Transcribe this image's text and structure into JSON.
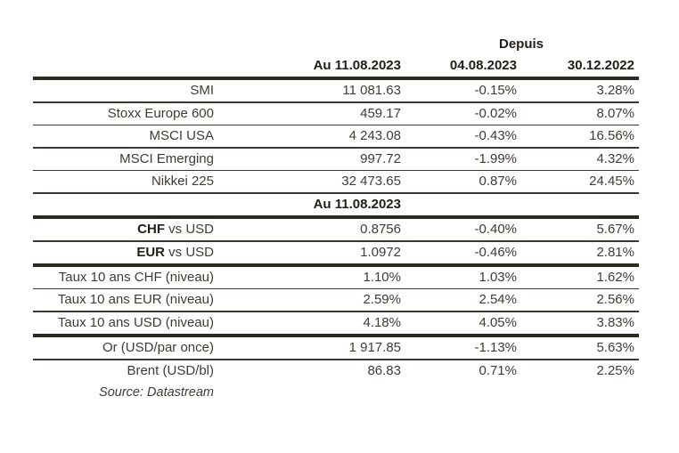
{
  "colors": {
    "ink": "#403c35",
    "strong": "#232019",
    "rule_thin": "#3c3831",
    "rule_thick": "#2c2822",
    "background": "#ffffff"
  },
  "header": {
    "depuis_label": "Depuis",
    "columns": [
      {
        "label": "Au 11.08.2023"
      },
      {
        "label": "04.08.2023"
      },
      {
        "label": "30.12.2022"
      }
    ]
  },
  "table": {
    "rows": [
      {
        "label": "SMI",
        "value": "11 081.63",
        "since_0408": "-0.15%",
        "since_3012": "3.28%",
        "rule_after": "thin"
      },
      {
        "label": "Stoxx Europe 600",
        "value": "459.17",
        "since_0408": "-0.02%",
        "since_3012": "8.07%",
        "rule_after": "thin"
      },
      {
        "label": "MSCI USA",
        "value": "4 243.08",
        "since_0408": "-0.43%",
        "since_3012": "16.56%",
        "rule_after": "thin"
      },
      {
        "label": "MSCI Emerging",
        "value": "997.72",
        "since_0408": "-1.99%",
        "since_3012": "4.32%",
        "rule_after": "thin"
      },
      {
        "label": "Nikkei 225",
        "value": "32 473.65",
        "since_0408": "0.87%",
        "since_3012": "24.45%",
        "rule_after": "thin"
      },
      {
        "type": "subheader",
        "label": "Au 11.08.2023",
        "rule_after": "thick"
      },
      {
        "label_strong": "CHF",
        "label": " vs USD",
        "value": "0.8756",
        "since_0408": "-0.40%",
        "since_3012": "5.67%",
        "rule_after": "thin"
      },
      {
        "label_strong": "EUR",
        "label": " vs USD",
        "value": "1.0972",
        "since_0408": "-0.46%",
        "since_3012": "2.81%",
        "rule_after": "thick"
      },
      {
        "label": "Taux 10 ans CHF (niveau)",
        "value": "1.10%",
        "since_0408": "1.03%",
        "since_3012": "1.62%",
        "rule_after": "thin"
      },
      {
        "label": "Taux 10 ans EUR (niveau)",
        "value": "2.59%",
        "since_0408": "2.54%",
        "since_3012": "2.56%",
        "rule_after": "thin"
      },
      {
        "label": "Taux 10 ans USD (niveau)",
        "value": "4.18%",
        "since_0408": "4.05%",
        "since_3012": "3.83%",
        "rule_after": "thick"
      },
      {
        "label": "Or (USD/par once)",
        "value": "1 917.85",
        "since_0408": "-1.13%",
        "since_3012": "5.63%",
        "rule_after": "thin"
      },
      {
        "label": "Brent (USD/bl)",
        "value": "86.83",
        "since_0408": "0.71%",
        "since_3012": "2.25%",
        "rule_after": null
      }
    ]
  },
  "footer": {
    "source": "Source: Datastream"
  },
  "chart_data": {
    "type": "table",
    "title": "",
    "columns": [
      "",
      "Au 11.08.2023",
      "Depuis 04.08.2023",
      "Depuis 30.12.2022"
    ],
    "rows": [
      [
        "SMI",
        "11 081.63",
        "-0.15%",
        "3.28%"
      ],
      [
        "Stoxx Europe 600",
        "459.17",
        "-0.02%",
        "8.07%"
      ],
      [
        "MSCI USA",
        "4 243.08",
        "-0.43%",
        "16.56%"
      ],
      [
        "MSCI Emerging",
        "997.72",
        "-1.99%",
        "4.32%"
      ],
      [
        "Nikkei 225",
        "32 473.65",
        "0.87%",
        "24.45%"
      ],
      [
        "CHF vs USD",
        "0.8756",
        "-0.40%",
        "5.67%"
      ],
      [
        "EUR vs USD",
        "1.0972",
        "-0.46%",
        "2.81%"
      ],
      [
        "Taux 10 ans CHF (niveau)",
        "1.10%",
        "1.03%",
        "1.62%"
      ],
      [
        "Taux 10 ans EUR (niveau)",
        "2.59%",
        "2.54%",
        "2.56%"
      ],
      [
        "Taux 10 ans USD (niveau)",
        "4.18%",
        "4.05%",
        "3.83%"
      ],
      [
        "Or (USD/par once)",
        "1 917.85",
        "-1.13%",
        "5.63%"
      ],
      [
        "Brent (USD/bl)",
        "86.83",
        "0.71%",
        "2.25%"
      ]
    ],
    "source": "Source: Datastream"
  }
}
